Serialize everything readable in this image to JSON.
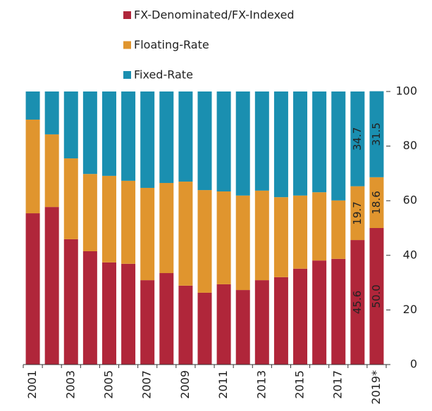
{
  "chart_data": {
    "type": "stacked_bar",
    "categories": [
      "2001",
      null,
      "2003",
      null,
      "2005",
      null,
      "2007",
      null,
      "2009",
      null,
      "2011",
      null,
      "2013",
      null,
      "2015",
      null,
      "2017",
      null,
      "2019*"
    ],
    "series": [
      {
        "name": "FX-Denominated/FX-Indexed",
        "color": "#b0263a",
        "values": [
          55.4,
          57.7,
          45.9,
          41.5,
          37.4,
          36.9,
          30.9,
          33.5,
          28.9,
          26.3,
          29.4,
          27.3,
          30.9,
          32.0,
          35.1,
          38.1,
          38.7,
          45.6,
          50.0
        ],
        "value_labels": [
          null,
          null,
          null,
          null,
          null,
          null,
          null,
          null,
          null,
          null,
          null,
          null,
          null,
          null,
          null,
          null,
          null,
          "45.6",
          "50.0"
        ]
      },
      {
        "name": "Floating-Rate",
        "color": "#e0952e",
        "values": [
          34.3,
          26.6,
          29.6,
          28.3,
          31.7,
          30.4,
          33.8,
          33.0,
          38.1,
          37.6,
          34.0,
          34.6,
          32.8,
          29.3,
          26.8,
          25.0,
          21.4,
          19.7,
          18.6
        ],
        "value_labels": [
          null,
          null,
          null,
          null,
          null,
          null,
          null,
          null,
          null,
          null,
          null,
          null,
          null,
          null,
          null,
          null,
          null,
          "19.7",
          "18.6"
        ]
      },
      {
        "name": "Fixed-Rate",
        "color": "#1a8fb0",
        "values": [
          10.3,
          15.7,
          24.5,
          30.2,
          30.9,
          32.7,
          35.3,
          33.5,
          33.0,
          36.1,
          36.6,
          38.1,
          36.3,
          38.7,
          38.1,
          36.9,
          39.9,
          34.7,
          31.5
        ],
        "value_labels": [
          null,
          null,
          null,
          null,
          null,
          null,
          null,
          null,
          null,
          null,
          null,
          null,
          null,
          null,
          null,
          null,
          null,
          "34.7",
          "31.5"
        ]
      }
    ],
    "ylim": [
      0,
      100
    ],
    "yticks": [
      0,
      20,
      40,
      60,
      80,
      100
    ],
    "y_axis_side": "right",
    "grid": false
  }
}
